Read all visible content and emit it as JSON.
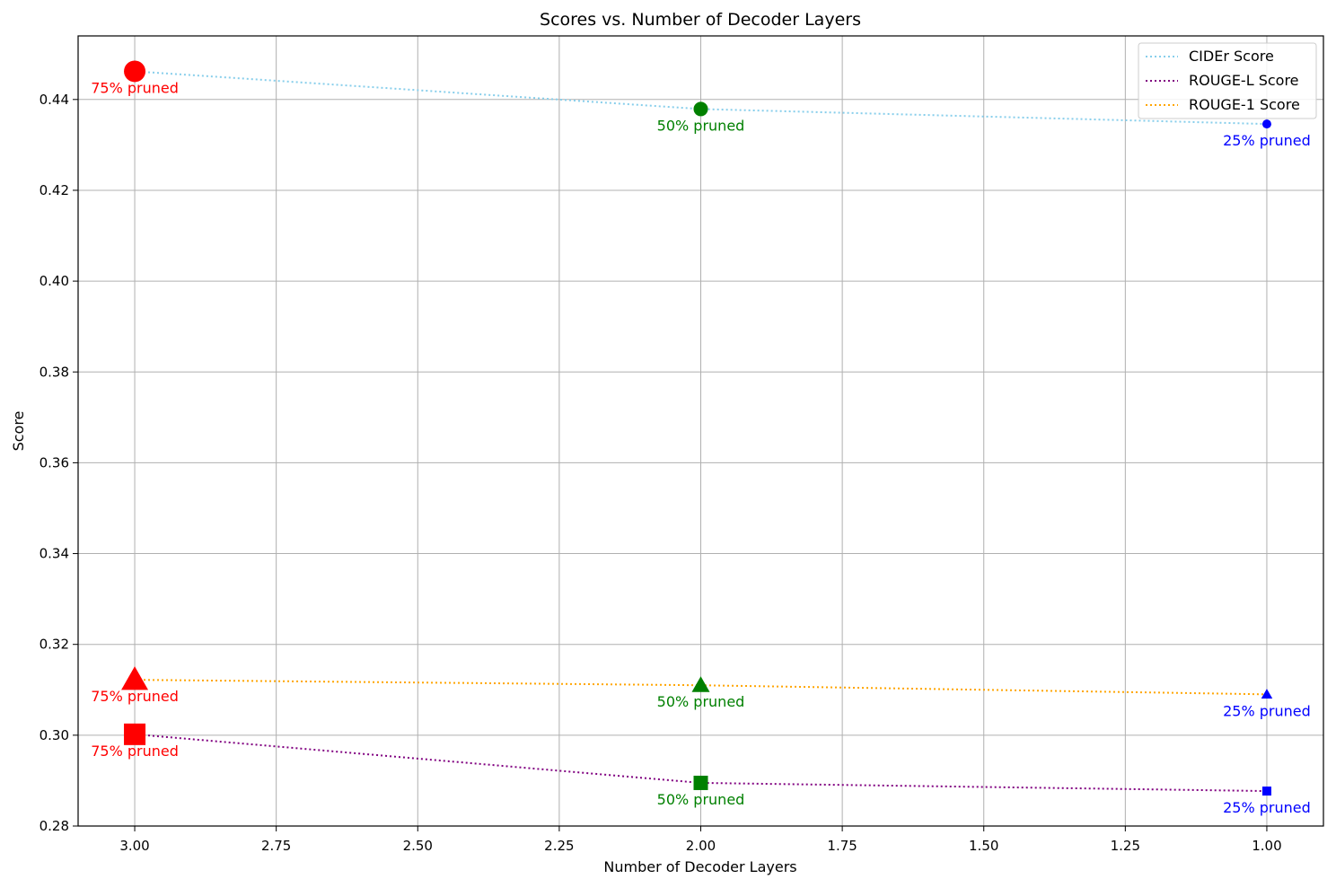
{
  "chart_data": {
    "type": "line",
    "title": "Scores vs. Number of Decoder Layers",
    "xlabel": "Number of Decoder Layers",
    "ylabel": "Score",
    "x": [
      3.0,
      2.0,
      1.0
    ],
    "xlim": [
      3.1,
      0.9
    ],
    "x_inverted": true,
    "ylim": [
      0.28,
      0.454
    ],
    "xticks": [
      "3.00",
      "2.75",
      "2.50",
      "2.25",
      "2.00",
      "1.75",
      "1.50",
      "1.25",
      "1.00"
    ],
    "yticks": [
      "0.28",
      "0.30",
      "0.32",
      "0.34",
      "0.36",
      "0.38",
      "0.40",
      "0.42",
      "0.44"
    ],
    "grid": true,
    "legend_position": "top-right",
    "series": [
      {
        "name": "CIDEr Score",
        "line_color": "#87ceeb",
        "marker": "circle",
        "values": [
          0.4462,
          0.4379,
          0.4346
        ]
      },
      {
        "name": "ROUGE-L Score",
        "line_color": "#800080",
        "marker": "square",
        "values": [
          0.3002,
          0.2895,
          0.2877
        ]
      },
      {
        "name": "ROUGE-1 Score",
        "line_color": "#ffa500",
        "marker": "triangle",
        "values": [
          0.3122,
          0.311,
          0.309
        ]
      }
    ],
    "point_annotations": [
      "75% pruned",
      "50% pruned",
      "25% pruned"
    ],
    "point_colors": [
      "#ff0000",
      "#008000",
      "#0000ff"
    ]
  }
}
